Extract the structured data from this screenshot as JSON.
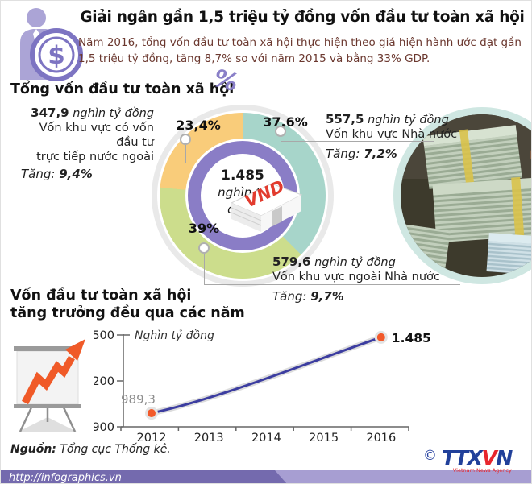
{
  "header": {
    "title": "Giải ngân gần 1,5 triệu tỷ đồng vốn đầu tư toàn xã hội",
    "subtitle": "Năm 2016, tổng vốn đầu tư toàn xã hội thực hiện theo giá hiện hành ước đạt gần 1,5 triệu tỷ đồng, tăng 8,7% so với năm 2015 và bằng 33% GDP.",
    "icon": "investor-dollar-icon"
  },
  "donut": {
    "title": "Tổng vốn đầu tư toàn xã hội",
    "decoration_glyph": "%",
    "center_value": "1.485",
    "center_unit": "nghìn tỷ đồng",
    "money_label": "VND",
    "percent_labels": {
      "state": "37,6%",
      "nonstate": "39%",
      "fdi": "23,4%"
    },
    "callouts": {
      "fdi": {
        "amount": "347,9",
        "unit": "nghìn tỷ đồng",
        "desc1": "Vốn khu vực có vốn đầu tư",
        "desc2": "trực tiếp nước ngoài",
        "growth_label": "Tăng:",
        "growth_value": "9,4%"
      },
      "state": {
        "amount": "557,5",
        "unit": "nghìn tỷ đồng",
        "desc1": "Vốn khu vực Nhà nước",
        "growth_label": "Tăng:",
        "growth_value": "7,2%"
      },
      "nonstate": {
        "amount": "579,6",
        "unit": "nghìn tỷ đồng",
        "desc1": "Vốn khu vực ngoài Nhà nước",
        "growth_label": "Tăng:",
        "growth_value": "9,7%"
      }
    }
  },
  "trend": {
    "title_line1": "Vốn đầu tư toàn xã hội",
    "title_line2": "tăng trưởng đều qua các năm"
  },
  "footer": {
    "source_label": "Nguồn:",
    "source_text": "Tổng cục Thống kê.",
    "url": "http://infographics.vn",
    "logo": {
      "copyright": "©",
      "part1": "TTX",
      "part2": "V",
      "part3": "N",
      "tagline": "Vietnam News Agency"
    }
  },
  "colors": {
    "accent_purple": "#8a7dc6",
    "segment_state": "#a7d5ca",
    "segment_nonstate": "#ccdd8c",
    "segment_fdi": "#f9cc7a",
    "line": "#3c3da0",
    "point": "#f2592a",
    "bar_dark": "#746aae",
    "bar_light": "#a79ed2",
    "logo_blue": "#21409a",
    "logo_red": "#e8262d",
    "subtitle_text": "#6b382f"
  },
  "chart_data": [
    {
      "type": "pie",
      "title": "Tổng vốn đầu tư toàn xã hội",
      "center_label": "1.485 nghìn tỷ đồng",
      "start_angle_deg": 0,
      "direction": "clockwise",
      "slices": [
        {
          "label": "Vốn khu vực Nhà nước",
          "percent": 37.6,
          "amount": 557.5,
          "amount_unit": "nghìn tỷ đồng",
          "growth_percent": 7.2,
          "color": "#a7d5ca"
        },
        {
          "label": "Vốn khu vực ngoài Nhà nước",
          "percent": 39,
          "amount": 579.6,
          "amount_unit": "nghìn tỷ đồng",
          "growth_percent": 9.7,
          "color": "#ccdd8c"
        },
        {
          "label": "Vốn khu vực có vốn đầu tư trực tiếp nước ngoài",
          "percent": 23.4,
          "amount": 347.9,
          "amount_unit": "nghìn tỷ đồng",
          "growth_percent": 9.4,
          "color": "#f9cc7a"
        }
      ]
    },
    {
      "type": "line",
      "title": "Vốn đầu tư toàn xã hội tăng trưởng đều qua các năm",
      "ylabel": "Nghìn tỷ đồng",
      "x": [
        2012,
        2013,
        2014,
        2015,
        2016
      ],
      "points": [
        {
          "x": 2012,
          "y": 989.3,
          "label": "989,3",
          "emphasis": "muted"
        },
        {
          "x": 2016,
          "y": 1485,
          "label": "1.485",
          "emphasis": "bold"
        }
      ],
      "ylim": [
        900,
        1500
      ],
      "yticks": [
        900,
        1200,
        1500
      ],
      "line_color": "#3c3da0",
      "point_color": "#f2592a"
    }
  ]
}
